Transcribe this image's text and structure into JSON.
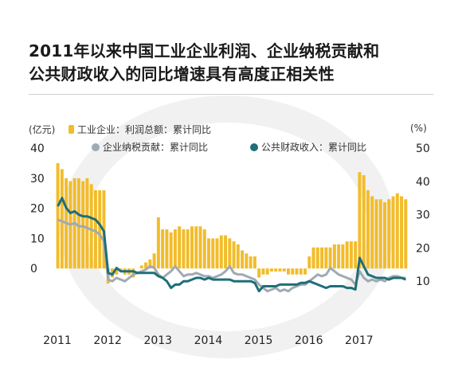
{
  "title_line1": "2011年以来中国工业企业利润、企业纳税贡献和",
  "title_line2": "公共财政收入的同比增速具有高度正相关性",
  "chart_data": {
    "type": "bar+line",
    "left_unit": "(亿元)",
    "right_unit": "(%)",
    "left_ticks": [
      "40",
      "30",
      "20",
      "10",
      "0"
    ],
    "right_ticks": [
      "50",
      "40",
      "30",
      "20",
      "10"
    ],
    "left_ylim": [
      -10,
      40
    ],
    "right_ylim": [
      0,
      50
    ],
    "x_labels": [
      "2011",
      "2012",
      "2013",
      "2014",
      "2015",
      "2016",
      "2017"
    ],
    "legend": {
      "bar": "工业企业：利润总额：累计同比",
      "line_gray": "企业纳税贡献：累计同比",
      "line_teal": "公共财政收入：累计同比"
    },
    "colors": {
      "bar": "#F2BC2A",
      "line_gray": "#9FAAB2",
      "line_teal": "#1F6E7A"
    },
    "bars": [
      35,
      33,
      30,
      29,
      30,
      30,
      29,
      30,
      28,
      26,
      26,
      26,
      -5,
      -3,
      -2,
      -1,
      -2,
      -2,
      -3,
      0,
      1,
      2,
      3,
      5,
      17,
      13,
      13,
      12,
      13,
      14,
      13,
      13,
      14,
      14,
      14,
      13,
      10,
      10,
      10,
      11,
      11,
      10,
      9,
      8,
      6,
      5,
      4,
      4,
      -3,
      -2,
      -2,
      -1,
      -1,
      -1,
      -1,
      -2,
      -2,
      -2,
      -2,
      -2,
      4,
      7,
      7,
      7,
      7,
      7,
      8,
      8,
      8,
      9,
      9,
      9,
      32,
      31,
      26,
      24,
      23,
      23,
      22,
      23,
      24,
      25,
      24,
      23
    ],
    "line_gray": [
      28.5,
      28,
      27.5,
      27,
      27.5,
      26.5,
      26.5,
      26,
      25.5,
      25,
      24,
      22,
      10.5,
      10,
      11,
      10.5,
      10,
      11,
      12,
      12.5,
      13,
      13.5,
      14.5,
      14,
      12,
      11,
      12,
      13,
      14.5,
      13,
      11.5,
      12,
      12,
      12.5,
      12,
      11.5,
      11.5,
      11,
      11.5,
      12,
      13,
      14.5,
      12.5,
      12,
      12,
      11.5,
      11,
      10.5,
      9,
      8,
      7,
      7.5,
      8,
      7,
      7.5,
      7,
      8,
      8.5,
      9,
      9,
      10,
      11,
      12,
      11.5,
      12,
      14,
      13,
      12,
      11.5,
      11,
      10.5,
      9,
      13,
      11,
      10,
      10.5,
      10,
      10.5,
      10,
      11,
      11.5,
      11.5,
      11,
      11
    ],
    "line_teal": [
      32.5,
      35,
      32,
      30.5,
      31,
      30,
      29.5,
      29.5,
      29,
      28.5,
      27,
      25,
      12.5,
      12,
      14,
      13,
      13,
      13,
      13,
      12.5,
      12.5,
      12.5,
      12.5,
      12.5,
      11.5,
      11,
      10,
      8,
      9,
      9,
      10,
      10,
      10.5,
      11,
      11,
      10.5,
      11,
      10.5,
      10.5,
      10.5,
      10.5,
      10.5,
      10,
      10,
      10,
      10,
      10,
      9.5,
      7,
      8.5,
      8.5,
      8.5,
      8.5,
      9,
      9,
      9,
      9,
      9,
      9.5,
      9.5,
      10,
      9.5,
      9,
      8.5,
      8,
      8.5,
      8.5,
      8.5,
      8.5,
      8,
      8,
      7.5,
      17,
      14.5,
      12,
      11.5,
      11,
      11,
      11,
      10.5,
      11,
      11,
      11,
      10.5
    ]
  }
}
